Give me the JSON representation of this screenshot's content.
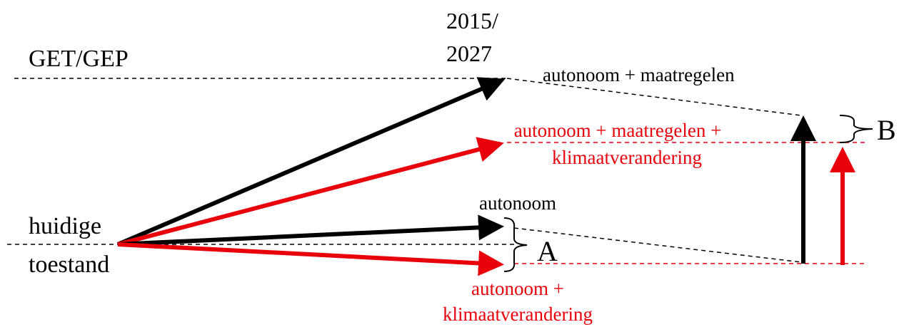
{
  "header_year": [
    "2015/",
    "2027"
  ],
  "levels": {
    "target": "GET/GEP",
    "current": [
      "huidige",
      "toestand"
    ]
  },
  "scenarios": [
    {
      "label": [
        "autonoom + maatregelen"
      ]
    },
    {
      "label": [
        "autonoom + maatregelen +",
        "klimaatverandering"
      ]
    },
    {
      "label": [
        "autonoom"
      ]
    },
    {
      "label": [
        "autonoom +",
        "klimaatverandering"
      ]
    }
  ],
  "brackets": {
    "a": "A",
    "b": "B"
  }
}
